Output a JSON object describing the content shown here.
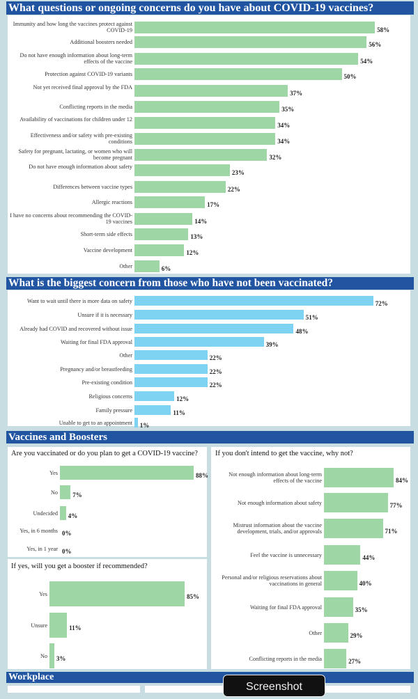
{
  "headers": {
    "q1": "What questions or ongoing concerns do you have about COVID-19 vaccines?",
    "q2": "What is the biggest concern from those who have not been vaccinated?",
    "q3": "Vaccines and Boosters",
    "q4": "Workplace"
  },
  "overlay": {
    "label": "Screenshot"
  },
  "colors": {
    "green": "#9fd6a6",
    "blue": "#7fd3f2",
    "header": "#2155a2"
  },
  "chart_data": [
    {
      "type": "bar",
      "orientation": "horizontal",
      "title": "What questions or ongoing concerns do you have about COVID-19 vaccines?",
      "categories": [
        "Immunity and how long the vaccines protect against COVID-19",
        "Additional boosters needed",
        "Do not have enough information about long-term effects of the vaccine",
        "Protection against COVID-19 variants",
        "Not yet received final approval by the FDA",
        "Conflicting reports in the media",
        "Availability of vaccinations for children under 12",
        "Effectiveness and/or safety with pre-existing conditions",
        "Safety for pregnant, lactating, or women who will become pregnant",
        "Do not have enough information about safety",
        "Differences between vaccine types",
        "Allergic reactions",
        "I have no concerns about recommending the COVID-19 vaccines",
        "Short-term side effects",
        "Vaccine development",
        "Other"
      ],
      "values": [
        58,
        56,
        54,
        50,
        37,
        35,
        34,
        34,
        32,
        23,
        22,
        17,
        14,
        13,
        12,
        6
      ],
      "value_labels": [
        "58%",
        "56%",
        "54%",
        "50%",
        "37%",
        "35%",
        "34%",
        "34%",
        "32%",
        "23%",
        "22%",
        "17%",
        "14%",
        "13%",
        "12%",
        "6%"
      ],
      "xlim": [
        0,
        60
      ]
    },
    {
      "type": "bar",
      "orientation": "horizontal",
      "title": "What is the biggest concern from those who have not been vaccinated?",
      "categories": [
        "Want to wait until there is more data on safety",
        "Unsure if it is necessary",
        "Already had COVID and recovered without issue",
        "Waiting for final FDA approval",
        "Other",
        "Pregnancy and/or breastfeeding",
        "Pre-existing condition",
        "Religious concerns",
        "Family pressure",
        "Unable to get to an appointment"
      ],
      "values": [
        72,
        51,
        48,
        39,
        22,
        22,
        22,
        12,
        11,
        1
      ],
      "value_labels": [
        "72%",
        "51%",
        "48%",
        "39%",
        "22%",
        "22%",
        "22%",
        "12%",
        "11%",
        "1%"
      ],
      "xlim": [
        0,
        75
      ]
    },
    {
      "type": "bar",
      "orientation": "horizontal",
      "title": "Are you vaccinated or do you plan to get a COVID-19 vaccine?",
      "categories": [
        "Yes",
        "No",
        "Undecided",
        "Yes, in 6 months",
        "Yes, in 1 year"
      ],
      "values": [
        88,
        7,
        4,
        0,
        0
      ],
      "value_labels": [
        "88%",
        "7%",
        "4%",
        "0%",
        "0%"
      ],
      "xlim": [
        0,
        88
      ]
    },
    {
      "type": "bar",
      "orientation": "horizontal",
      "title": "If yes, will you get a booster if recommended?",
      "categories": [
        "Yes",
        "Unsure",
        "No"
      ],
      "values": [
        85,
        11,
        3
      ],
      "value_labels": [
        "85%",
        "11%",
        "3%"
      ],
      "xlim": [
        0,
        85
      ]
    },
    {
      "type": "bar",
      "orientation": "horizontal",
      "title": "If you don't intend to get the vaccine, why not?",
      "categories": [
        "Not enough information about long-term effects of the vaccine",
        "Not enough information about safety",
        "Mistrust information about the vaccine development, trials, and/or approvals",
        "Feel the vaccine is unnecessary",
        "Personal and/or religious reservations about vaccinations in general",
        "Waiting for final FDA approval",
        "Other",
        "Conflicting reports in the media"
      ],
      "values": [
        84,
        77,
        71,
        44,
        40,
        35,
        29,
        27
      ],
      "value_labels": [
        "84%",
        "77%",
        "71%",
        "44%",
        "40%",
        "35%",
        "29%",
        "27%"
      ],
      "xlim": [
        0,
        84
      ]
    }
  ]
}
